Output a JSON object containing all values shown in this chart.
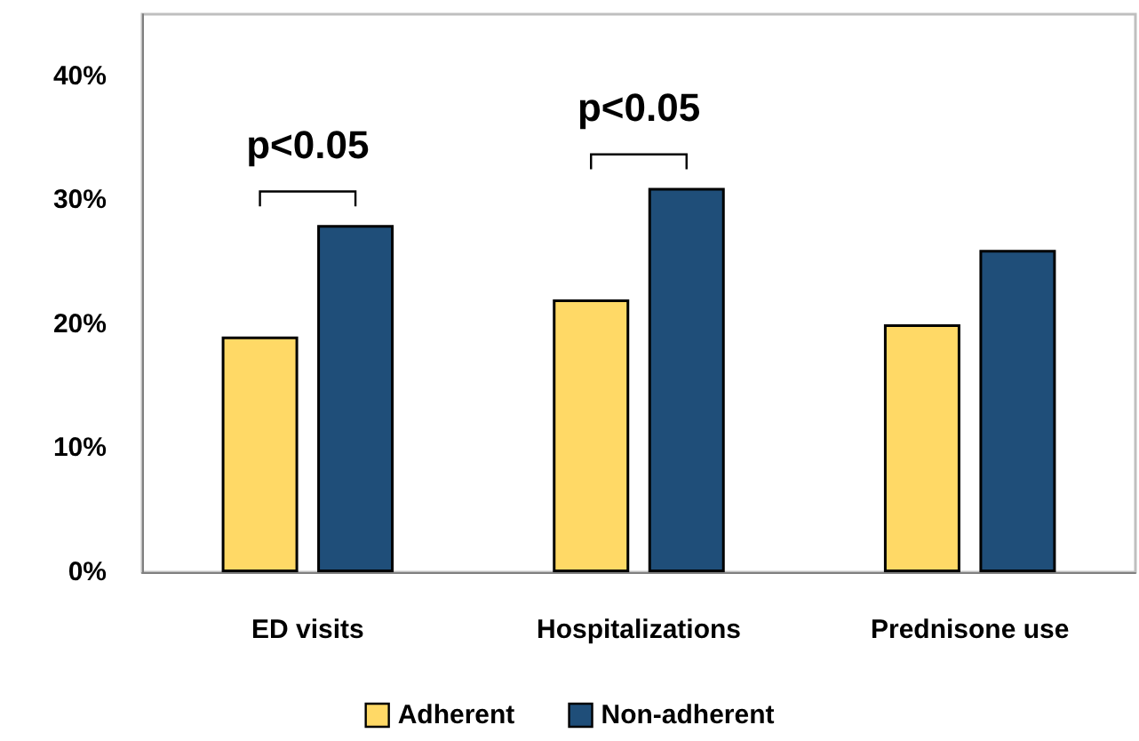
{
  "chart_data": {
    "type": "bar",
    "categories": [
      "ED visits",
      "Hospitalizations",
      "Prednisone use"
    ],
    "series": [
      {
        "name": "Adherent",
        "color": "#ffd966",
        "values": [
          19,
          22,
          20
        ]
      },
      {
        "name": "Non-adherent",
        "color": "#1f4e79",
        "values": [
          28,
          31,
          26
        ]
      }
    ],
    "ylim": [
      0,
      45
    ],
    "yticks": [
      {
        "value": 0,
        "label": "0%"
      },
      {
        "value": 10,
        "label": "10%"
      },
      {
        "value": 20,
        "label": "20%"
      },
      {
        "value": 30,
        "label": "30%"
      },
      {
        "value": 40,
        "label": "40%"
      }
    ],
    "annotations": [
      "p<0.05",
      "p<0.05"
    ],
    "grid": false,
    "legend": "bottom"
  }
}
